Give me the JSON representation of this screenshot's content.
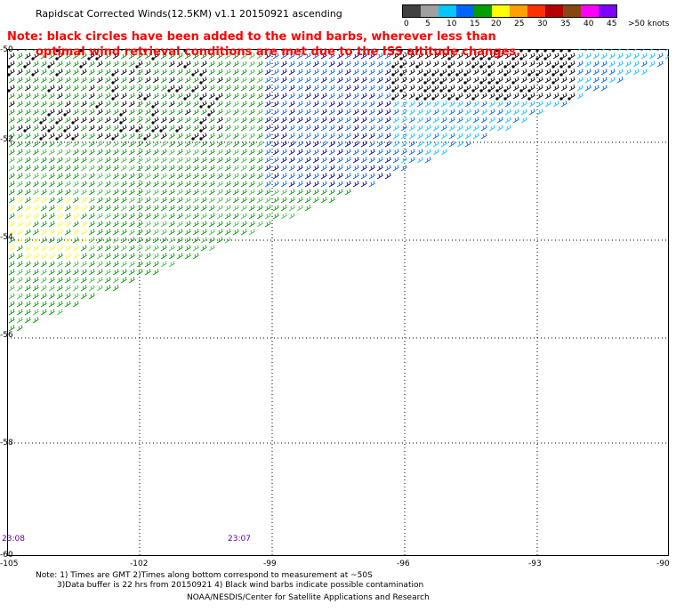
{
  "title": "Rapidscat Corrected Winds(12.5KM) v1.1 20150921 ascending",
  "note_line1": "Note: black circles have been added to the wind barbs, wherever less than",
  "note_line2": "optimal wind retrieval conditions are met due to the ISS altitude changes.",
  "legend": {
    "labels": [
      "0",
      "5",
      "10",
      "15",
      "20",
      "25",
      "30",
      "35",
      "40",
      "45",
      ">50 knots"
    ],
    "colors": [
      "#404040",
      "#a0a0a0",
      "#00c8ff",
      "#0064ff",
      "#00a000",
      "#ffff00",
      "#ffa000",
      "#ff3000",
      "#b40000",
      "#8b4513",
      "#ff00ff",
      "#8000ff"
    ]
  },
  "lat_labels": [
    "-50",
    "-52",
    "-54",
    "-56",
    "-58",
    "-60"
  ],
  "lon_labels": [
    "-105",
    "-102",
    "-99",
    "-96",
    "-93",
    "-90"
  ],
  "time_labels": [
    "23:08",
    "23:07"
  ],
  "footnotes": {
    "line1": "Note: 1) Times are GMT 2)Times along bottom correspond to measurement at ~50S",
    "line2": "3)Data buffer is 22 hrs from 20150921 4) Black wind barbs indicate possible contamination",
    "line3": "NOAA/NESDIS/Center for Satellite Applications and Research"
  }
}
